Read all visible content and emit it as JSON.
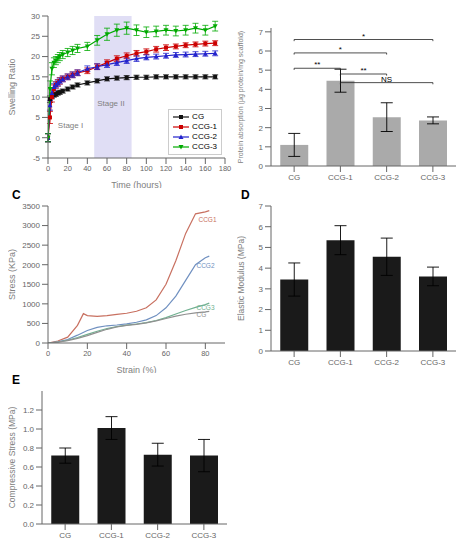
{
  "chart_data": [
    {
      "type": "line",
      "xlabel": "Time (hours)",
      "ylabel": "Swelling Ratio",
      "x": [
        0,
        2,
        4,
        6,
        8,
        10,
        12,
        15,
        20,
        25,
        30,
        40,
        50,
        60,
        70,
        80,
        90,
        100,
        110,
        120,
        130,
        140,
        150,
        160,
        170
      ],
      "series": [
        {
          "name": "CG",
          "color": "#111111",
          "marker": "square",
          "values": [
            0,
            9.5,
            10.2,
            10.5,
            10.7,
            11.0,
            11.2,
            11.5,
            12.0,
            12.5,
            13.0,
            13.5,
            14.0,
            14.5,
            14.7,
            14.8,
            14.9,
            14.9,
            15.0,
            15.0,
            15.0,
            15.0,
            15.0,
            15.0,
            15.0
          ],
          "errors": [
            1.0,
            0.8,
            0.6,
            0.5,
            0.5,
            0.5,
            0.5,
            0.5,
            0.5,
            0.5,
            0.5,
            0.5,
            0.5,
            0.5,
            0.5,
            0.5,
            0.5,
            0.5,
            0.5,
            0.5,
            0.5,
            0.5,
            0.5,
            0.5,
            0.5
          ]
        },
        {
          "name": "CCG-1",
          "color": "#cc0000",
          "marker": "square",
          "values": [
            0,
            5.0,
            10.0,
            12.0,
            13.0,
            13.5,
            14.0,
            14.5,
            15.0,
            15.5,
            16.0,
            16.5,
            17.5,
            18.5,
            19.5,
            20.2,
            20.8,
            21.2,
            21.8,
            22.2,
            22.5,
            22.8,
            23.0,
            23.2,
            23.3
          ],
          "errors": [
            1.0,
            1.5,
            1.2,
            1.0,
            0.8,
            0.8,
            0.8,
            0.7,
            0.7,
            0.7,
            0.7,
            0.7,
            0.7,
            0.7,
            0.7,
            0.7,
            0.7,
            0.7,
            0.7,
            0.7,
            0.6,
            0.6,
            0.6,
            0.6,
            0.6
          ]
        },
        {
          "name": "CCG-2",
          "color": "#2222cc",
          "marker": "triangle-up",
          "values": [
            0,
            8.0,
            11.0,
            12.5,
            13.0,
            13.5,
            14.0,
            14.5,
            15.0,
            15.5,
            16.0,
            17.0,
            17.5,
            18.0,
            18.5,
            19.0,
            19.5,
            19.8,
            20.0,
            20.2,
            20.4,
            20.5,
            20.6,
            20.7,
            20.8
          ],
          "errors": [
            1.0,
            1.2,
            1.0,
            0.8,
            0.7,
            0.7,
            0.7,
            0.7,
            0.7,
            0.7,
            0.7,
            0.7,
            0.7,
            0.7,
            0.7,
            0.7,
            0.7,
            0.6,
            0.6,
            0.6,
            0.6,
            0.6,
            0.6,
            0.6,
            0.6
          ]
        },
        {
          "name": "CCG-3",
          "color": "#00aa00",
          "marker": "triangle-down",
          "values": [
            0,
            12.0,
            17.0,
            18.5,
            19.0,
            19.5,
            20.0,
            20.5,
            21.0,
            21.5,
            22.0,
            22.5,
            24.0,
            25.5,
            26.5,
            27.0,
            26.5,
            26.0,
            26.2,
            26.5,
            26.3,
            26.5,
            27.0,
            26.5,
            27.5
          ],
          "errors": [
            1.0,
            2.0,
            1.5,
            1.2,
            1.0,
            1.0,
            1.0,
            1.0,
            1.0,
            1.0,
            1.0,
            1.0,
            1.2,
            1.5,
            1.5,
            1.5,
            1.3,
            1.3,
            1.3,
            1.2,
            1.2,
            1.2,
            1.2,
            1.2,
            1.2
          ]
        }
      ],
      "xlim": [
        0,
        180
      ],
      "ylim": [
        -5,
        30
      ],
      "xticks": [
        0,
        20,
        40,
        60,
        80,
        100,
        120,
        140,
        160,
        180
      ],
      "yticks": [
        -5,
        0,
        5,
        10,
        15,
        20,
        25,
        30
      ],
      "shaded": {
        "x": [
          47,
          85
        ],
        "color": "#ccc8ee"
      },
      "annotations": [
        {
          "text": "Stage I",
          "x": 10,
          "y": 3.2
        },
        {
          "text": "Stage II",
          "x": 50,
          "y": 8.5
        }
      ],
      "legend": "lower right",
      "grid": false
    },
    {
      "type": "bar",
      "ylabel": "Protein absorption (μg protein/mg scaffold)",
      "categories": [
        "CG",
        "CCG-1",
        "CCG-2",
        "CCG-3"
      ],
      "values": [
        1.1,
        4.45,
        2.55,
        2.38
      ],
      "errors": [
        0.6,
        0.6,
        0.75,
        0.18
      ],
      "color": "#aaaaaa",
      "ylim": [
        0,
        7.2
      ],
      "yticks": [
        0,
        1,
        2,
        3,
        4,
        5,
        6,
        7
      ],
      "annotations": [
        {
          "text": "**",
          "from": "CG",
          "to": "CCG-1",
          "y": 5.1
        },
        {
          "text": "*",
          "from": "CG",
          "to": "CCG-2",
          "y": 5.9
        },
        {
          "text": "*",
          "from": "CG",
          "to": "CCG-3",
          "y": 6.6
        },
        {
          "text": "**",
          "from": "CCG-1",
          "to": "CCG-2",
          "y": 4.8
        },
        {
          "text": "NS",
          "from": "CCG-1",
          "to": "CCG-3",
          "y": 4.35
        }
      ],
      "grid": false
    },
    {
      "type": "line",
      "title": "C",
      "xlabel": "Strain (%)",
      "ylabel": "Stress (KPa)",
      "series": [
        {
          "name": "CCG1",
          "color": "#c87060",
          "x": [
            0,
            5,
            10,
            15,
            18,
            20,
            25,
            30,
            35,
            40,
            45,
            50,
            55,
            60,
            65,
            70,
            75,
            80,
            82
          ],
          "values": [
            0,
            50,
            150,
            450,
            750,
            700,
            680,
            700,
            730,
            760,
            810,
            900,
            1100,
            1500,
            2100,
            2800,
            3300,
            3350,
            3380
          ],
          "label_position": [
            76.5,
            3150
          ]
        },
        {
          "name": "CCG2",
          "color": "#7090c0",
          "x": [
            0,
            5,
            10,
            15,
            20,
            25,
            30,
            35,
            40,
            45,
            50,
            55,
            60,
            65,
            70,
            75,
            80,
            82
          ],
          "values": [
            0,
            30,
            90,
            200,
            320,
            400,
            440,
            460,
            490,
            530,
            590,
            700,
            900,
            1200,
            1600,
            2000,
            2180,
            2220
          ],
          "label_position": [
            75.5,
            1980
          ]
        },
        {
          "name": "CCG3",
          "color": "#70b090",
          "x": [
            0,
            5,
            10,
            15,
            20,
            25,
            30,
            35,
            40,
            45,
            50,
            55,
            60,
            65,
            70,
            75,
            80,
            82
          ],
          "values": [
            0,
            25,
            70,
            140,
            220,
            300,
            370,
            420,
            455,
            485,
            520,
            575,
            650,
            740,
            830,
            910,
            980,
            1020
          ],
          "label_position": [
            75.5,
            900
          ]
        },
        {
          "name": "CG",
          "color": "#909090",
          "x": [
            0,
            5,
            10,
            15,
            20,
            25,
            30,
            35,
            40,
            45,
            50,
            55,
            60,
            65,
            70,
            75,
            80,
            82
          ],
          "values": [
            0,
            22,
            60,
            120,
            190,
            270,
            350,
            410,
            450,
            478,
            515,
            565,
            625,
            685,
            735,
            768,
            795,
            810
          ],
          "label_position": [
            75.5,
            730
          ]
        }
      ],
      "xlim": [
        0,
        90
      ],
      "ylim": [
        0,
        3500
      ],
      "xticks": [
        0,
        20,
        40,
        60,
        80
      ],
      "yticks": [
        0,
        500,
        1000,
        1500,
        2000,
        2500,
        3000,
        3500
      ],
      "grid": false
    },
    {
      "type": "bar",
      "title": "D",
      "ylabel": "Elastic Modulus (MPa)",
      "categories": [
        "CG",
        "CCG-1",
        "CCG-2",
        "CCG-3"
      ],
      "values": [
        3.45,
        5.35,
        4.55,
        3.6
      ],
      "errors": [
        0.8,
        0.7,
        0.9,
        0.45
      ],
      "color": "#1a1a1a",
      "ylim": [
        0,
        7
      ],
      "yticks": [
        0,
        1,
        2,
        3,
        4,
        5,
        6,
        7
      ],
      "grid": false
    },
    {
      "type": "bar",
      "title": "E",
      "ylabel": "Compressive Stress (MPa)",
      "categories": [
        "CG",
        "CCG-1",
        "CCG-2",
        "CCG-3"
      ],
      "values": [
        0.72,
        1.01,
        0.73,
        0.72
      ],
      "errors": [
        0.08,
        0.12,
        0.12,
        0.17
      ],
      "color": "#1a1a1a",
      "ylim": [
        0,
        1.4
      ],
      "yticks": [
        {
          "value": 0,
          "label": "0.0"
        },
        0.2,
        0.4,
        0.6,
        0.8,
        {
          "value": 1,
          "label": "1.0"
        },
        1.2
      ],
      "grid": false
    }
  ]
}
